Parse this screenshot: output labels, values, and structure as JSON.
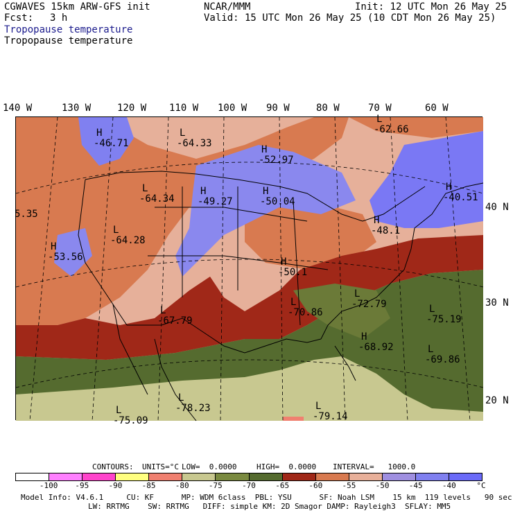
{
  "header": {
    "title": "CGWAVES 15km ARW-GFS init",
    "center": "NCAR/MMM",
    "init": "Init: 12 UTC Mon 26 May 25",
    "fcst_label": "Fcst:",
    "fcst_value": "3 h",
    "valid": "Valid: 15 UTC Mon 26 May 25 (10 CDT Mon 26 May 25)",
    "field_title_blue": "Tropopause temperature",
    "field_title_black": "Tropopause temperature"
  },
  "lon_labels": [
    "140 W",
    "130 W",
    "120 W",
    "110 W",
    "100 W",
    "90 W",
    "80 W",
    "70 W",
    "60 W"
  ],
  "lat_labels": [
    "40 N",
    "30 N",
    "20 N"
  ],
  "map_labels": [
    {
      "letter": "H",
      "value": "-46.71"
    },
    {
      "letter": "L",
      "value": "-64.33"
    },
    {
      "letter": "L",
      "value": "-62.66"
    },
    {
      "letter": "H",
      "value": "-52.97"
    },
    {
      "letter": "L",
      "value": "-64.34"
    },
    {
      "letter": "H",
      "value": "-49.27"
    },
    {
      "letter": "H",
      "value": "-50.04"
    },
    {
      "letter": "H",
      "value": "-40.51"
    },
    {
      "letter": "",
      "value": "5.35"
    },
    {
      "letter": "L",
      "value": "-64.28"
    },
    {
      "letter": "H",
      "value": "-53.56"
    },
    {
      "letter": "H",
      "value": "-48.1"
    },
    {
      "letter": "H",
      "value": "-50.1"
    },
    {
      "letter": "L",
      "value": "-72.79"
    },
    {
      "letter": "L",
      "value": "-67.79"
    },
    {
      "letter": "L",
      "value": "-70.86"
    },
    {
      "letter": "L",
      "value": "-75.19"
    },
    {
      "letter": "H",
      "value": "-68.92"
    },
    {
      "letter": "L",
      "value": "-69.86"
    },
    {
      "letter": "L",
      "value": "-78.23"
    },
    {
      "letter": "L",
      "value": "-75.09"
    },
    {
      "letter": "L",
      "value": "-79.14"
    }
  ],
  "contours": {
    "label": "CONTOURS:",
    "units": "UNITS=°C",
    "low": "LOW=  0.0000",
    "high": "HIGH=  0.0000",
    "interval": "INTERVAL=   1000.0"
  },
  "colorbar": {
    "colors": [
      "#ffffff",
      "#ff80ff",
      "#ff44cc",
      "#ffff80",
      "#f08070",
      "#c8c890",
      "#7a8a40",
      "#556b2f",
      "#a02818",
      "#d87a50",
      "#e8b09a",
      "#9f8fe0",
      "#8080f0",
      "#6a6af8"
    ],
    "labels": [
      "-100",
      "-95",
      "-90",
      "-85",
      "-80",
      "-75",
      "-70",
      "-65",
      "-60",
      "-55",
      "-50",
      "-45",
      "-40"
    ],
    "unit": "°C"
  },
  "footer": {
    "line1": "Model Info: V4.6.1     CU: KF      MP: WDM 6class  PBL: YSU      SF: Noah LSM    15 km  119 levels   90 sec",
    "line2": "LW: RRTMG    SW: RRTMG   DIFF: simple KM: 2D Smagor DAMP: Rayleigh3  SFLAY: MM5"
  }
}
